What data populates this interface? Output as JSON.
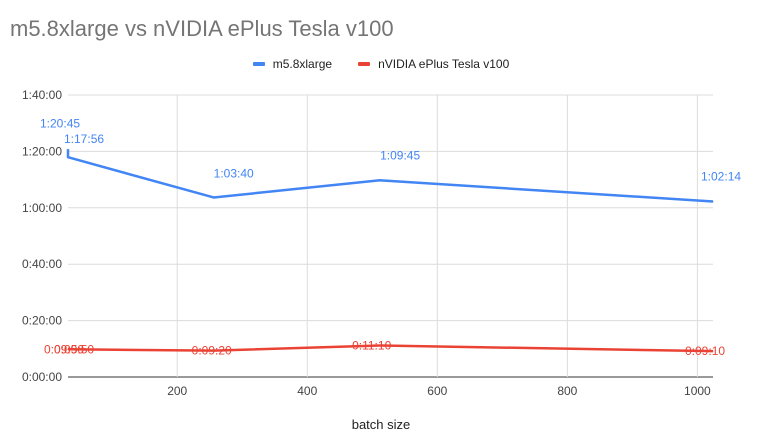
{
  "chart_data": {
    "type": "line",
    "title": "m5.8xlarge vs nVIDIA ePlus Tesla v100",
    "xlabel": "batch size",
    "ylabel": "",
    "x": [
      1,
      32,
      256,
      512,
      1024
    ],
    "xlim": [
      32,
      1024
    ],
    "xticks": [
      200,
      400,
      600,
      800,
      1000
    ],
    "ylim": [
      0,
      6000
    ],
    "yticks": [
      0,
      1200,
      2400,
      3600,
      4800,
      6000
    ],
    "ytick_labels": [
      "0:00:00",
      "0:20:00",
      "0:40:00",
      "1:00:00",
      "1:20:00",
      "1:40:00"
    ],
    "grid": true,
    "legend_position": "top",
    "series": [
      {
        "name": "m5.8xlarge",
        "color": "#4285f4",
        "values": [
          4845,
          4676,
          3820,
          4185,
          3734
        ],
        "labels": [
          "1:20:45",
          "1:17:56",
          "1:03:40",
          "1:09:45",
          "1:02:14"
        ]
      },
      {
        "name": "nVIDIA ePlus Tesla v100",
        "color": "#ea4335",
        "values": [
          590,
          590,
          560,
          670,
          550
        ],
        "labels": [
          "0:09:50",
          "0:09:50",
          "0:09:20",
          "0:11:10",
          "0:09:10"
        ]
      }
    ]
  }
}
